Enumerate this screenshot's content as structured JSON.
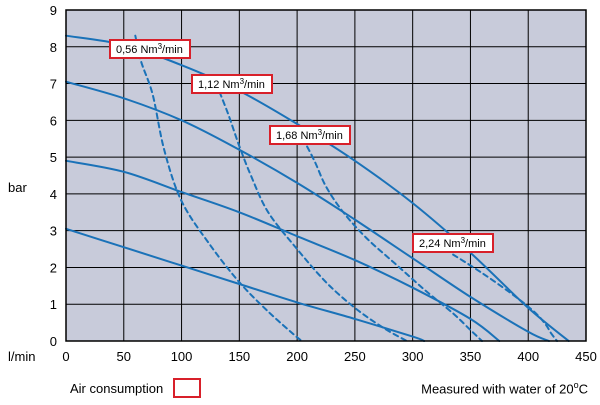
{
  "chart_data": {
    "type": "line",
    "xlabel": "l/min",
    "ylabel": "bar",
    "xlim": [
      0,
      450
    ],
    "ylim": [
      0,
      9
    ],
    "xticks": [
      0,
      50,
      100,
      150,
      200,
      250,
      300,
      350,
      400,
      450
    ],
    "yticks": [
      0,
      1,
      2,
      3,
      4,
      5,
      6,
      7,
      8,
      9
    ],
    "grid": true,
    "background": "#c8cbda",
    "line_color": "#1a72b8",
    "label_border_color": "#d8202a",
    "series": [
      {
        "style": "solid",
        "x": [
          0,
          50,
          100,
          150,
          200,
          250,
          300,
          350,
          400,
          435
        ],
        "y": [
          8.3,
          8.05,
          7.5,
          6.8,
          5.9,
          4.9,
          3.75,
          2.4,
          0.9,
          0
        ]
      },
      {
        "style": "solid",
        "x": [
          0,
          50,
          100,
          150,
          200,
          250,
          300,
          350,
          400,
          418
        ],
        "y": [
          7.05,
          6.6,
          6.0,
          5.2,
          4.3,
          3.3,
          2.25,
          1.2,
          0.25,
          0
        ]
      },
      {
        "style": "solid",
        "x": [
          0,
          50,
          100,
          150,
          200,
          250,
          300,
          350,
          375
        ],
        "y": [
          4.9,
          4.6,
          4.05,
          3.5,
          2.85,
          2.2,
          1.45,
          0.6,
          0
        ]
      },
      {
        "style": "solid",
        "x": [
          0,
          50,
          100,
          150,
          200,
          250,
          300,
          310
        ],
        "y": [
          3.05,
          2.55,
          2.05,
          1.55,
          1.05,
          0.6,
          0.12,
          0
        ]
      },
      {
        "name": "0,56 Nm³/min",
        "style": "dashed",
        "x": [
          60,
          65,
          75,
          85,
          100,
          125,
          150,
          175,
          200,
          205
        ],
        "y": [
          8.3,
          7.6,
          6.7,
          5.2,
          3.8,
          2.6,
          1.6,
          0.8,
          0.1,
          0
        ]
      },
      {
        "name": "1,12 Nm³/min",
        "style": "dashed",
        "x": [
          130,
          140,
          150,
          160,
          175,
          200,
          225,
          250,
          275,
          295
        ],
        "y": [
          7.0,
          6.2,
          5.3,
          4.5,
          3.5,
          2.5,
          1.6,
          0.9,
          0.35,
          0
        ]
      },
      {
        "name": "1,68 Nm³/min",
        "style": "dashed",
        "x": [
          205,
          215,
          225,
          240,
          260,
          285,
          310,
          335,
          350,
          360
        ],
        "y": [
          5.5,
          4.9,
          4.2,
          3.5,
          2.8,
          2.1,
          1.4,
          0.75,
          0.3,
          0
        ]
      },
      {
        "name": "2,24 Nm³/min",
        "style": "dashed",
        "x": [
          335,
          360,
          385,
          405,
          415,
          420,
          425
        ],
        "y": [
          2.35,
          1.85,
          1.3,
          0.8,
          0.45,
          0.2,
          0
        ]
      }
    ],
    "annotations": [
      {
        "text": "0,56 Nm",
        "sup": "3",
        "tail": "/min"
      },
      {
        "text": "1,12 Nm",
        "sup": "3",
        "tail": "/min"
      },
      {
        "text": "1,68 Nm",
        "sup": "3",
        "tail": "/min"
      },
      {
        "text": "2,24 Nm",
        "sup": "3",
        "tail": "/min"
      }
    ]
  },
  "legend": {
    "label": "Air consumption"
  },
  "footnote": {
    "text": "Measured with water of 20",
    "sup": "o",
    "tail": "C"
  }
}
